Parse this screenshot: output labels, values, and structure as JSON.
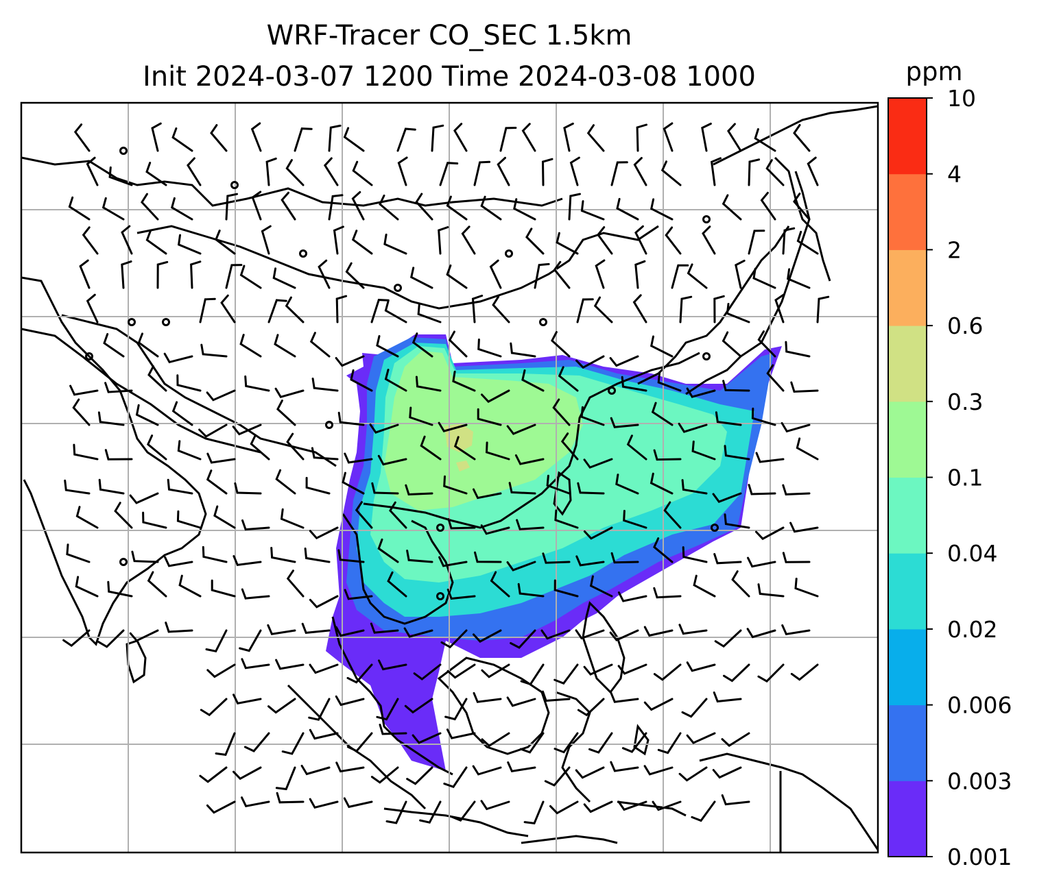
{
  "title": {
    "line1": "WRF-Tracer CO_SEC 1.5km",
    "line2": "Init 2024-03-07 1200 Time 2024-03-08 1000"
  },
  "colorbar": {
    "unit": "ppm",
    "levels": [
      "0.001",
      "0.003",
      "0.006",
      "0.02",
      "0.04",
      "0.1",
      "0.3",
      "0.6",
      "2",
      "4",
      "10"
    ],
    "colors": [
      "#6a2cf8",
      "#3472f0",
      "#08aeeb",
      "#2cdcd4",
      "#6cf7c1",
      "#9ef994",
      "#d0e184",
      "#fcaf5d",
      "#fe713c",
      "#fa2c14"
    ]
  },
  "map": {
    "gridlines": true,
    "features": [
      "coastlines",
      "country-borders",
      "wind-barbs",
      "tracer-concentration-field"
    ]
  }
}
